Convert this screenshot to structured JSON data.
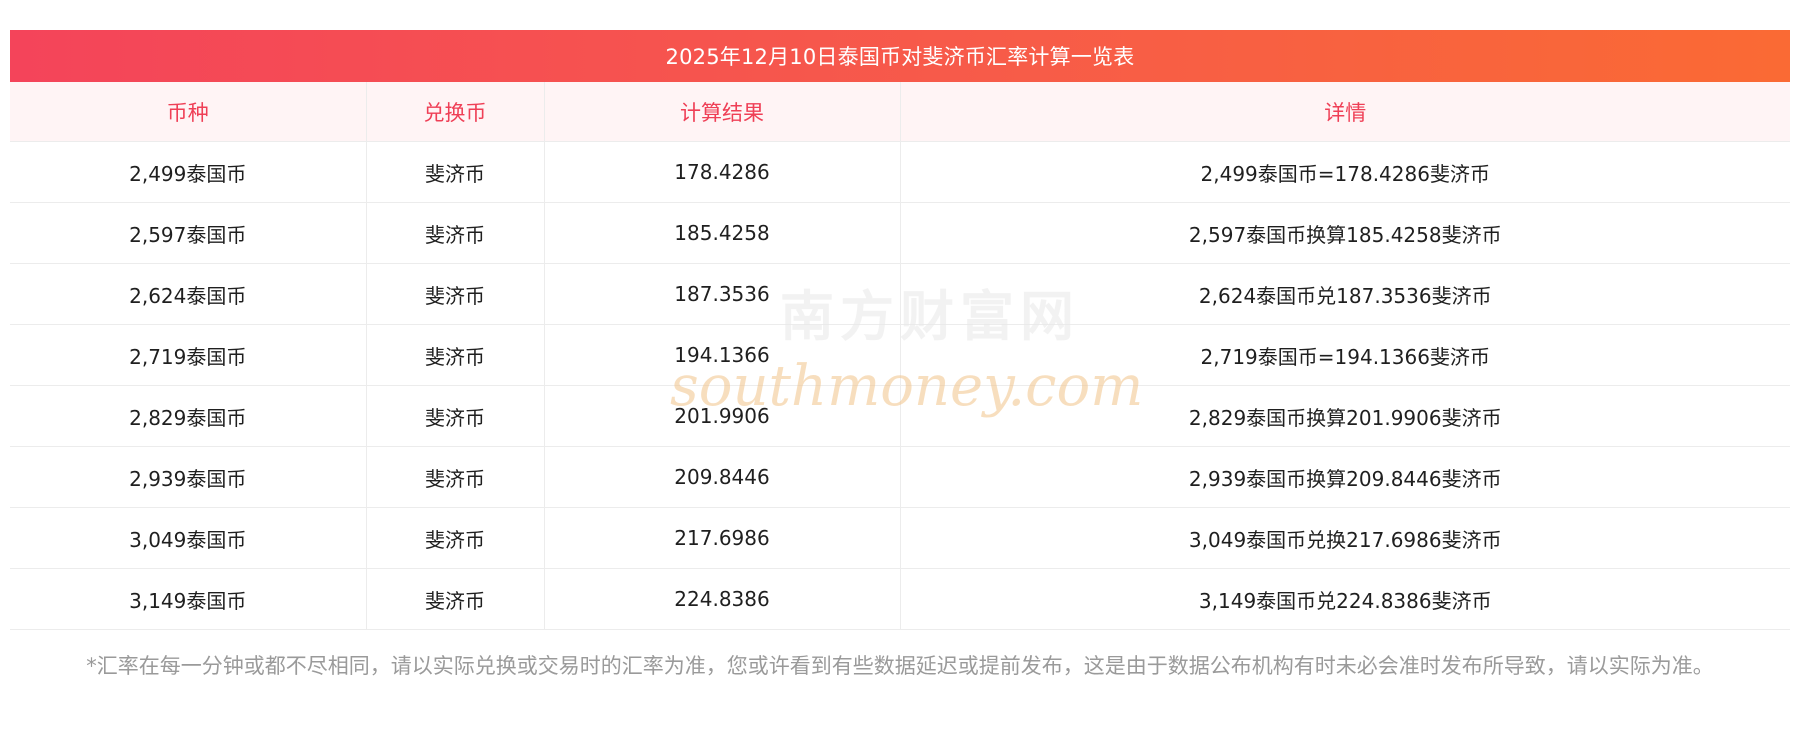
{
  "title": "2025年12月10日泰国币对斐济币汇率计算一览表",
  "headers": {
    "currency": "币种",
    "target": "兑换币",
    "result": "计算结果",
    "detail": "详情"
  },
  "rows": [
    {
      "currency": "2,499泰国币",
      "target": "斐济币",
      "result": "178.4286",
      "detail": "2,499泰国币=178.4286斐济币"
    },
    {
      "currency": "2,597泰国币",
      "target": "斐济币",
      "result": "185.4258",
      "detail": "2,597泰国币换算185.4258斐济币"
    },
    {
      "currency": "2,624泰国币",
      "target": "斐济币",
      "result": "187.3536",
      "detail": "2,624泰国币兑187.3536斐济币"
    },
    {
      "currency": "2,719泰国币",
      "target": "斐济币",
      "result": "194.1366",
      "detail": "2,719泰国币=194.1366斐济币"
    },
    {
      "currency": "2,829泰国币",
      "target": "斐济币",
      "result": "201.9906",
      "detail": "2,829泰国币换算201.9906斐济币"
    },
    {
      "currency": "2,939泰国币",
      "target": "斐济币",
      "result": "209.8446",
      "detail": "2,939泰国币换算209.8446斐济币"
    },
    {
      "currency": "3,049泰国币",
      "target": "斐济币",
      "result": "217.6986",
      "detail": "3,049泰国币兑换217.6986斐济币"
    },
    {
      "currency": "3,149泰国币",
      "target": "斐济币",
      "result": "224.8386",
      "detail": "3,149泰国币兑224.8386斐济币"
    }
  ],
  "watermark": {
    "cn": "南方财富网",
    "en": "southmoney.com",
    "color": "#f2c48a"
  },
  "note": "*汇率在每一分钟或都不尽相同，请以实际兑换或交易时的汇率为准，您或许看到有些数据延迟或提前发布，这是由于数据公布机构有时未必会准时发布所导致，请以实际为准。",
  "colors": {
    "header_text": "#ef3f56",
    "title_gradient_start": "#f4445a",
    "title_gradient_end": "#fa6a34"
  }
}
